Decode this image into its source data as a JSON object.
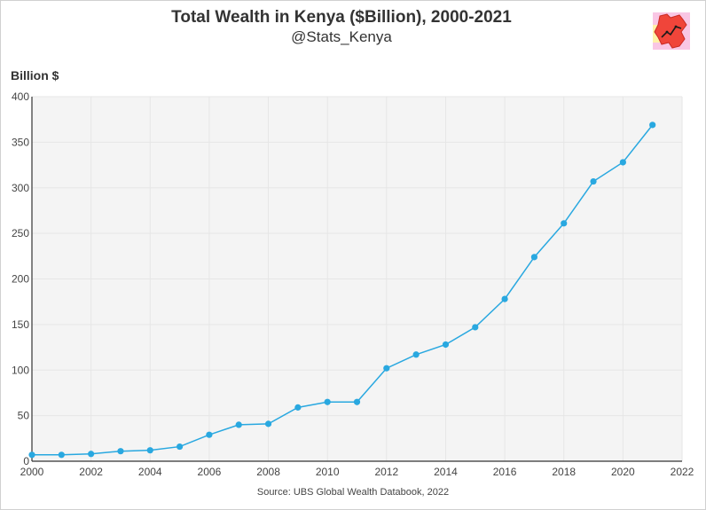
{
  "chart_data": {
    "type": "line",
    "title": "Total Wealth in Kenya ($Billion), 2000-2021",
    "subtitle": "@Stats_Kenya",
    "ylabel": "Billion $",
    "xlabel": "",
    "source": "Source: UBS Global Wealth Databook, 2022",
    "xlim": [
      2000,
      2022
    ],
    "ylim": [
      0,
      400
    ],
    "x_ticks": [
      2000,
      2002,
      2004,
      2006,
      2008,
      2010,
      2012,
      2014,
      2016,
      2018,
      2020,
      2022
    ],
    "y_ticks": [
      0,
      50,
      100,
      150,
      200,
      250,
      300,
      350,
      400
    ],
    "grid": true,
    "series": [
      {
        "name": "Total Wealth",
        "color": "#29a8e0",
        "x": [
          2000,
          2001,
          2002,
          2003,
          2004,
          2005,
          2006,
          2007,
          2008,
          2009,
          2010,
          2011,
          2012,
          2013,
          2014,
          2015,
          2016,
          2017,
          2018,
          2019,
          2020,
          2021
        ],
        "values": [
          7,
          7,
          8,
          11,
          12,
          16,
          29,
          40,
          41,
          59,
          65,
          65,
          102,
          117,
          128,
          147,
          178,
          224,
          261,
          307,
          328,
          369
        ]
      }
    ]
  },
  "colors": {
    "plot_background": "#f4f4f4",
    "grid": "#e6e6e6",
    "line": "#29a8e0",
    "axis": "#333333"
  },
  "logo": {
    "icon": "kenya-map-logo-icon"
  }
}
